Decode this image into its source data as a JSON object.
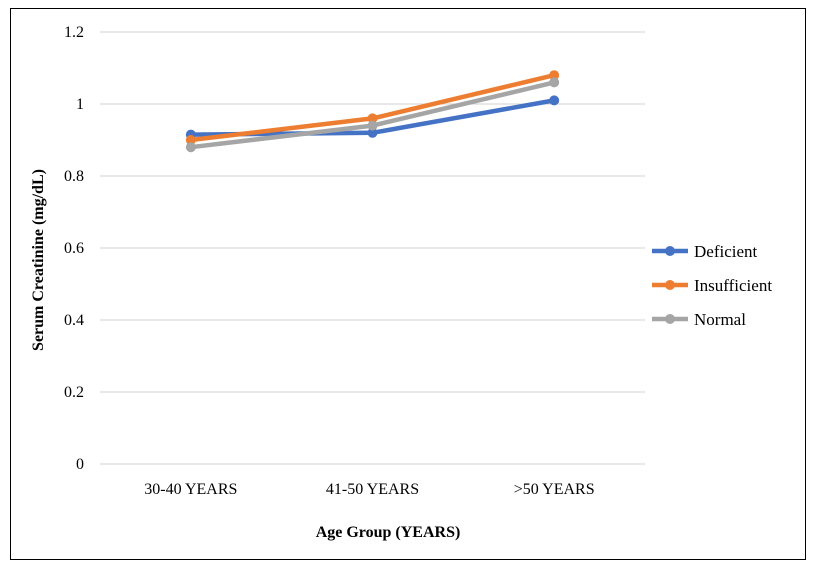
{
  "chart_data": {
    "type": "line",
    "categories": [
      "30-40 YEARS",
      "41-50 YEARS",
      ">50 YEARS"
    ],
    "series": [
      {
        "name": "Deficient",
        "color": "#4472C4",
        "values": [
          0.915,
          0.92,
          1.01
        ]
      },
      {
        "name": "Insufficient",
        "color": "#ED7D31",
        "values": [
          0.9,
          0.96,
          1.08
        ]
      },
      {
        "name": "Normal",
        "color": "#A5A5A5",
        "values": [
          0.88,
          0.94,
          1.06
        ]
      }
    ],
    "xlabel": "Age Group  (YEARS)",
    "ylabel": "Serum Creatinine (mg/dL)",
    "ylim": [
      0,
      1.2
    ],
    "yticks": [
      "0",
      "0.2",
      "0.4",
      "0.6",
      "0.8",
      "1",
      "1.2"
    ],
    "ytick_values": [
      0,
      0.2,
      0.4,
      0.6,
      0.8,
      1.0,
      1.2
    ],
    "grid": true,
    "legend_position": "right"
  }
}
